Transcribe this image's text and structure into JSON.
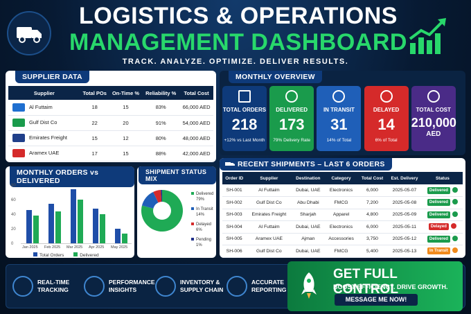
{
  "header": {
    "title_line1": "LOGISTICS & OPERATIONS",
    "title_line2": "MANAGEMENT DASHBOARD",
    "tagline": "TRACK. ANALYZE. OPTIMIZE. DELIVER RESULTS."
  },
  "supplier": {
    "title": "SUPPLIER DATA",
    "columns": [
      "Supplier",
      "Total POs",
      "On-Time %",
      "Reliability %",
      "Total Cost"
    ],
    "rows": [
      [
        "Al Futtaim",
        "18",
        "15",
        "83%",
        "66,000 AED"
      ],
      [
        "Gulf Dist Co",
        "22",
        "20",
        "91%",
        "54,000 AED"
      ],
      [
        "Emirates Freight",
        "15",
        "12",
        "80%",
        "48,000 AED"
      ],
      [
        "Aramex UAE",
        "17",
        "15",
        "88%",
        "42,000 AED"
      ]
    ]
  },
  "overview": {
    "title": "MONTHLY OVERVIEW",
    "cards": [
      {
        "label": "TOTAL ORDERS",
        "value": "218",
        "sub": "+12% vs Last Month",
        "color": "#0e3a7a",
        "icon": "clipboard-icon"
      },
      {
        "label": "DELIVERED",
        "value": "173",
        "sub": "79% Delivery Rate",
        "color": "#1a9b4c",
        "icon": "check-circle-icon"
      },
      {
        "label": "IN TRANSIT",
        "value": "31",
        "sub": "14% of Total",
        "color": "#1f5fb8",
        "icon": "truck-icon"
      },
      {
        "label": "DELAYED",
        "value": "14",
        "sub": "6% of Total",
        "color": "#d52a2a",
        "icon": "warning-icon"
      },
      {
        "label": "TOTAL COST",
        "value": "210,000",
        "sub2": "AED",
        "color": "#4a2b87",
        "icon": "dollar-icon"
      }
    ]
  },
  "monthly": {
    "title": "MONTHLY ORDERS vs DELIVERED",
    "legend": [
      "Total Orders",
      "Delivered"
    ]
  },
  "chart_data": [
    {
      "type": "bar",
      "title": "MONTHLY ORDERS vs DELIVERED",
      "categories": [
        "Jan 2025",
        "Feb 2025",
        "Mar 2025",
        "Apr 2025",
        "May 2025"
      ],
      "ylim": [
        0,
        80
      ],
      "series": [
        {
          "name": "Total Orders",
          "values": [
            46,
            54,
            74,
            48,
            20
          ],
          "color": "#1f4ea8"
        },
        {
          "name": "Delivered",
          "values": [
            38,
            44,
            60,
            40,
            13
          ],
          "color": "#1faa55"
        }
      ]
    },
    {
      "type": "pie",
      "title": "SHIPMENT STATUS MIX",
      "labels": [
        "Delivered",
        "In Transit",
        "Delayed",
        "Pending"
      ],
      "values": [
        79,
        14,
        6,
        1
      ],
      "colors": [
        "#1faa55",
        "#1f5fb8",
        "#d52a2a",
        "#1f2f8a"
      ]
    }
  ],
  "mix": {
    "title": "SHIPMENT STATUS MIX",
    "legend": [
      [
        "Delivered",
        "79%"
      ],
      [
        "In Transit",
        "14%"
      ],
      [
        "Delayed",
        "6%"
      ],
      [
        "Pending",
        "1%"
      ]
    ]
  },
  "shipments": {
    "title": "RECENT SHIPMENTS – LAST 6 ORDERS",
    "columns": [
      "Order ID",
      "Supplier",
      "Destination",
      "Category",
      "Total Cost",
      "Est. Delivery",
      "Status"
    ],
    "rows": [
      [
        "SH-001",
        "Al Futtaim",
        "Dubai, UAE",
        "Electronics",
        "6,000",
        "2025-05-07",
        "Delivered",
        "#1a9b4c"
      ],
      [
        "SH-002",
        "Gulf Dist Co",
        "Abu Dhabi",
        "FMCG",
        "7,200",
        "2025-05-08",
        "Delivered",
        "#1a9b4c"
      ],
      [
        "SH-003",
        "Emirates Freight",
        "Sharjah",
        "Apparel",
        "4,800",
        "2025-05-09",
        "Delivered",
        "#1a9b4c"
      ],
      [
        "SH-004",
        "Al Futtaim",
        "Dubai, UAE",
        "Electronics",
        "6,000",
        "2025-05-11",
        "Delayed",
        "#d52a2a"
      ],
      [
        "SH-005",
        "Aramex UAE",
        "Ajman",
        "Accessories",
        "3,750",
        "2025-05-12",
        "Delivered",
        "#1a9b4c"
      ],
      [
        "SH-006",
        "Gulf Dist Co",
        "Dubai, UAE",
        "FMCG",
        "5,400",
        "2025-05-13",
        "In Transit",
        "#f08a1c"
      ]
    ]
  },
  "footer": {
    "items": [
      [
        "REAL-TIME",
        "TRACKING"
      ],
      [
        "PERFORMANCE",
        "INSIGHTS"
      ],
      [
        "INVENTORY &",
        "SUPPLY CHAIN"
      ],
      [
        "ACCURATE",
        "REPORTING"
      ]
    ],
    "cta_title": "GET FULL CONTROL",
    "cta_sub": "BOOST EFFICIENCY. DRIVE GROWTH.",
    "cta_button": "MESSAGE ME NOW!"
  }
}
